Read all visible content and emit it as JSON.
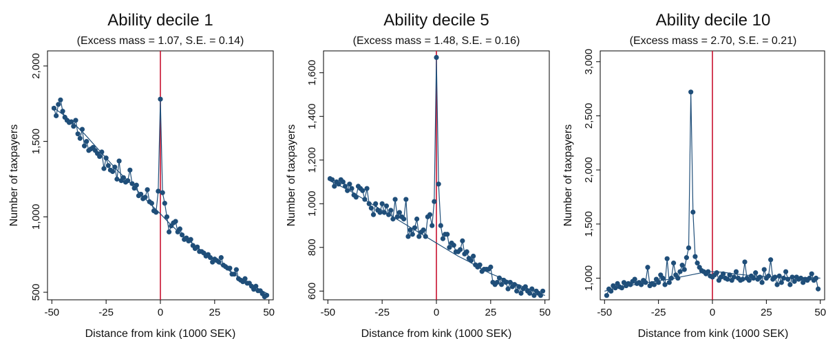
{
  "colors": {
    "series": "#1f4e79",
    "kink_line": "#c8102e",
    "axis": "#000000",
    "background": "#ffffff"
  },
  "chart_data": [
    {
      "type": "scatter",
      "title": "Ability decile 1",
      "subtitle": "(Excess mass = 1.07, S.E. = 0.14)",
      "xlabel": "Distance from kink (1000 SEK)",
      "ylabel": "Number of taxpayers",
      "xlim": [
        -52,
        52
      ],
      "ylim": [
        450,
        2100
      ],
      "x_ticks": [
        -50,
        -25,
        0,
        25,
        50
      ],
      "x_tick_labels": [
        "-50",
        "-25",
        "0",
        "25",
        "50"
      ],
      "y_ticks": [
        500,
        1000,
        1500,
        2000
      ],
      "y_tick_labels": [
        "500",
        "1,000",
        "1,500",
        "2,000"
      ],
      "kink_x": 0,
      "grid": false,
      "series": [
        {
          "x": [
            -49,
            -48,
            -47,
            -46,
            -45,
            -44,
            -43,
            -42,
            -41,
            -40,
            -39,
            -38,
            -37,
            -36,
            -35,
            -34,
            -33,
            -32,
            -31,
            -30,
            -29,
            -28,
            -27,
            -26,
            -25,
            -24,
            -23,
            -22,
            -21,
            -20,
            -19,
            -18,
            -17,
            -16,
            -15,
            -14,
            -13,
            -12,
            -11,
            -10,
            -9,
            -8,
            -7,
            -6,
            -5,
            -4,
            -3,
            -2,
            -1,
            0,
            1,
            2,
            3,
            4,
            5,
            6,
            7,
            8,
            9,
            10,
            11,
            12,
            13,
            14,
            15,
            16,
            17,
            18,
            19,
            20,
            21,
            22,
            23,
            24,
            25,
            26,
            27,
            28,
            29,
            30,
            31,
            32,
            33,
            34,
            35,
            36,
            37,
            38,
            39,
            40,
            41,
            42,
            43,
            44,
            45,
            46,
            47,
            48,
            49
          ],
          "y": [
            1720,
            1670,
            1745,
            1775,
            1700,
            1660,
            1640,
            1625,
            1630,
            1600,
            1640,
            1550,
            1520,
            1580,
            1470,
            1500,
            1440,
            1450,
            1460,
            1440,
            1420,
            1400,
            1430,
            1320,
            1390,
            1340,
            1310,
            1300,
            1330,
            1250,
            1370,
            1240,
            1260,
            1230,
            1240,
            1310,
            1220,
            1190,
            1210,
            1140,
            1150,
            1120,
            1130,
            1180,
            1100,
            1090,
            1040,
            1030,
            1170,
            1780,
            1160,
            1090,
            1000,
            900,
            940,
            960,
            970,
            900,
            920,
            880,
            850,
            860,
            840,
            850,
            810,
            790,
            800,
            770,
            770,
            760,
            740,
            750,
            730,
            700,
            720,
            710,
            700,
            730,
            680,
            670,
            660,
            660,
            620,
            620,
            650,
            590,
            580,
            570,
            590,
            560,
            560,
            540,
            520,
            540,
            510,
            510,
            490,
            470,
            480
          ]
        },
        {
          "x": [
            -50,
            -45,
            -40,
            -35,
            -30,
            -25,
            -20,
            -15,
            -10,
            -5,
            0,
            5,
            10,
            15,
            20,
            25,
            30,
            35,
            40,
            45,
            50
          ],
          "y": [
            1730,
            1680,
            1620,
            1550,
            1470,
            1390,
            1310,
            1240,
            1165,
            1090,
            1020,
            945,
            880,
            820,
            765,
            710,
            660,
            610,
            565,
            525,
            485
          ]
        }
      ]
    },
    {
      "type": "scatter",
      "title": "Ability decile 5",
      "subtitle": "(Excess mass = 1.48, S.E. = 0.16)",
      "xlabel": "Distance from kink (1000 SEK)",
      "ylabel": "Number of taxpayers",
      "xlim": [
        -52,
        52
      ],
      "ylim": [
        560,
        1700
      ],
      "x_ticks": [
        -50,
        -25,
        0,
        25,
        50
      ],
      "x_tick_labels": [
        "-50",
        "-25",
        "0",
        "25",
        "50"
      ],
      "y_ticks": [
        600,
        800,
        1000,
        1200,
        1400,
        1600
      ],
      "y_tick_labels": [
        "600",
        "800",
        "1,000",
        "1,200",
        "1,400",
        "1,600"
      ],
      "kink_x": 0,
      "grid": false,
      "series": [
        {
          "x": [
            -49,
            -48,
            -47,
            -46,
            -45,
            -44,
            -43,
            -42,
            -41,
            -40,
            -39,
            -38,
            -37,
            -36,
            -35,
            -34,
            -33,
            -32,
            -31,
            -30,
            -29,
            -28,
            -27,
            -26,
            -25,
            -24,
            -23,
            -22,
            -21,
            -20,
            -19,
            -18,
            -17,
            -16,
            -15,
            -14,
            -13,
            -12,
            -11,
            -10,
            -9,
            -8,
            -7,
            -6,
            -5,
            -4,
            -3,
            -2,
            -1,
            0,
            1,
            2,
            3,
            4,
            5,
            6,
            7,
            8,
            9,
            10,
            11,
            12,
            13,
            14,
            15,
            16,
            17,
            18,
            19,
            20,
            21,
            22,
            23,
            24,
            25,
            26,
            27,
            28,
            29,
            30,
            31,
            32,
            33,
            34,
            35,
            36,
            37,
            38,
            39,
            40,
            41,
            42,
            43,
            44,
            45,
            46,
            47,
            48,
            49
          ],
          "y": [
            1115,
            1110,
            1080,
            1100,
            1090,
            1110,
            1100,
            1080,
            1060,
            1090,
            1070,
            1040,
            1030,
            1080,
            1070,
            1060,
            1020,
            1070,
            1000,
            980,
            950,
            1000,
            970,
            960,
            1000,
            960,
            990,
            950,
            970,
            930,
            1020,
            940,
            960,
            940,
            930,
            1020,
            850,
            880,
            860,
            890,
            930,
            850,
            870,
            880,
            850,
            940,
            950,
            900,
            1010,
            1670,
            1090,
            900,
            840,
            860,
            860,
            800,
            820,
            810,
            780,
            780,
            790,
            830,
            770,
            780,
            750,
            740,
            760,
            720,
            710,
            720,
            690,
            700,
            700,
            700,
            710,
            640,
            630,
            640,
            660,
            630,
            650,
            640,
            610,
            640,
            620,
            630,
            600,
            620,
            590,
            610,
            620,
            600,
            590,
            610,
            580,
            600,
            590,
            580,
            600
          ]
        },
        {
          "x": [
            -50,
            -45,
            -40,
            -35,
            -30,
            -25,
            -20,
            -15,
            -10,
            -5,
            0,
            5,
            10,
            15,
            20,
            25,
            30,
            35,
            40,
            45,
            50
          ],
          "y": [
            1110,
            1085,
            1060,
            1030,
            1000,
            970,
            940,
            910,
            880,
            850,
            820,
            790,
            760,
            735,
            705,
            680,
            660,
            640,
            620,
            600,
            580
          ]
        }
      ]
    },
    {
      "type": "scatter",
      "title": "Ability decile 10",
      "subtitle": "(Excess mass = 2.70, S.E. = 0.21)",
      "xlabel": "Distance from kink (1000 SEK)",
      "ylabel": "Number of taxpayers",
      "xlim": [
        -52,
        52
      ],
      "ylim": [
        800,
        3100
      ],
      "x_ticks": [
        -50,
        -25,
        0,
        25,
        50
      ],
      "x_tick_labels": [
        "-50",
        "-25",
        "0",
        "25",
        "50"
      ],
      "y_ticks": [
        1000,
        1500,
        2000,
        2500,
        3000
      ],
      "y_tick_labels": [
        "1,000",
        "1,500",
        "2,000",
        "2,500",
        "3,000"
      ],
      "kink_x": 0,
      "grid": false,
      "series": [
        {
          "x": [
            -49,
            -48,
            -47,
            -46,
            -45,
            -44,
            -43,
            -42,
            -41,
            -40,
            -39,
            -38,
            -37,
            -36,
            -35,
            -34,
            -33,
            -32,
            -31,
            -30,
            -29,
            -28,
            -27,
            -26,
            -25,
            -24,
            -23,
            -22,
            -21,
            -20,
            -19,
            -18,
            -17,
            -16,
            -15,
            -14,
            -13,
            -12,
            -11,
            -10,
            -9,
            -8,
            -7,
            -6,
            -5,
            -4,
            -3,
            -2,
            -1,
            0,
            1,
            2,
            3,
            4,
            5,
            6,
            7,
            8,
            9,
            10,
            11,
            12,
            13,
            14,
            15,
            16,
            17,
            18,
            19,
            20,
            21,
            22,
            23,
            24,
            25,
            26,
            27,
            28,
            29,
            30,
            31,
            32,
            33,
            34,
            35,
            36,
            37,
            38,
            39,
            40,
            41,
            42,
            43,
            44,
            45,
            46,
            47,
            48,
            49
          ],
          "y": [
            840,
            900,
            880,
            930,
            910,
            950,
            920,
            910,
            960,
            930,
            950,
            940,
            970,
            990,
            950,
            960,
            940,
            980,
            960,
            1100,
            930,
            950,
            940,
            990,
            960,
            1030,
            1000,
            940,
            1180,
            960,
            1000,
            1140,
            1030,
            1000,
            1060,
            1120,
            1080,
            1190,
            1280,
            2720,
            1610,
            1200,
            1140,
            1100,
            1070,
            1060,
            1040,
            1060,
            1020,
            1010,
            1030,
            1050,
            980,
            1010,
            1040,
            1000,
            990,
            1030,
            980,
            1010,
            1060,
            1000,
            980,
            990,
            1150,
            1000,
            980,
            1020,
            1000,
            1050,
            990,
            1010,
            960,
            1080,
            1000,
            1020,
            1170,
            990,
            1010,
            940,
            1020,
            960,
            1000,
            1060,
            990,
            940,
            1010,
            970,
            1010,
            990,
            1000,
            960,
            990,
            980,
            1000,
            1040,
            980,
            1000,
            900
          ]
        },
        {
          "x": [
            -50,
            -45,
            -40,
            -35,
            -30,
            -25,
            -20,
            -15,
            -10,
            -5,
            0,
            5,
            10,
            15,
            20,
            25,
            30,
            35,
            40,
            45,
            50
          ],
          "y": [
            880,
            905,
            925,
            945,
            960,
            975,
            990,
            1010,
            1030,
            1050,
            1060,
            1055,
            1040,
            1030,
            1020,
            1015,
            1010,
            1005,
            1005,
            1005,
            1000
          ]
        }
      ]
    }
  ]
}
